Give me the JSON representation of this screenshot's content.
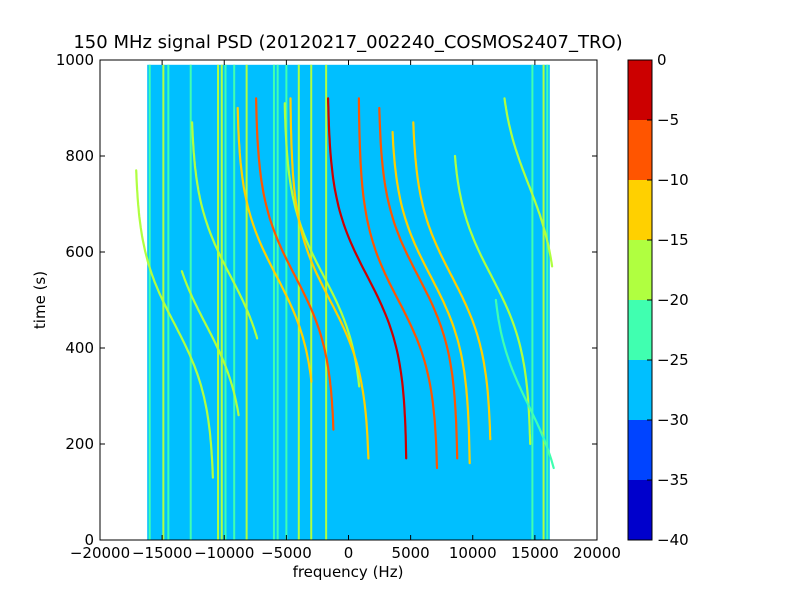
{
  "chart_data": {
    "type": "heatmap",
    "title": "150 MHz signal PSD (20120217_002240_COSMOS2407_TRO)",
    "xlabel": "frequency (Hz)",
    "ylabel": "time (s)",
    "xlim": [
      -20000,
      20000
    ],
    "ylim": [
      0,
      1000
    ],
    "xticks": [
      "−20000",
      "−15000",
      "−10000",
      "−5000",
      "0",
      "5000",
      "10000",
      "15000",
      "20000"
    ],
    "xtick_values": [
      -20000,
      -15000,
      -10000,
      -5000,
      0,
      5000,
      10000,
      15000,
      20000
    ],
    "yticks": [
      "0",
      "200",
      "400",
      "600",
      "800",
      "1000"
    ],
    "ytick_values": [
      0,
      200,
      400,
      600,
      800,
      1000
    ],
    "data_extent": {
      "freq": [
        -16200,
        16200
      ],
      "time": [
        0,
        990
      ]
    },
    "background_level": -27.5,
    "colorbar": {
      "range": [
        -40,
        0
      ],
      "levels": [
        -40,
        -35,
        -30,
        -25,
        -20,
        -15,
        -10,
        -5,
        0
      ],
      "tick_labels": [
        "−40",
        "−35",
        "−30",
        "−25",
        "−20",
        "−15",
        "−10",
        "−5",
        "0"
      ],
      "colors": [
        "#0000cc",
        "#0044ff",
        "#00bfff",
        "#40ffb0",
        "#b0ff40",
        "#ffd000",
        "#ff5500",
        "#cc0000"
      ]
    },
    "vertical_lines": [
      {
        "freq": -16000,
        "level": -22
      },
      {
        "freq": -14900,
        "level": -20
      },
      {
        "freq": -14500,
        "level": -22
      },
      {
        "freq": -12700,
        "level": -22
      },
      {
        "freq": -10500,
        "level": -18
      },
      {
        "freq": -10200,
        "level": -18
      },
      {
        "freq": -9900,
        "level": -22
      },
      {
        "freq": -9200,
        "level": -22
      },
      {
        "freq": -8200,
        "level": -20
      },
      {
        "freq": -6000,
        "level": -22
      },
      {
        "freq": -5700,
        "level": -22
      },
      {
        "freq": -5000,
        "level": -22
      },
      {
        "freq": -4000,
        "level": -20
      },
      {
        "freq": -3000,
        "level": -20
      },
      {
        "freq": -1800,
        "level": -20
      },
      {
        "freq": 14800,
        "level": -22
      },
      {
        "freq": 15700,
        "level": -20
      },
      {
        "freq": 16000,
        "level": -22
      }
    ],
    "doppler_tracks": [
      {
        "center_freq": -14000,
        "center_time": 450,
        "halfspan_freq": 3200,
        "top_time": 770,
        "bottom_time": 130,
        "level": -20
      },
      {
        "center_freq": -11500,
        "center_time": 450,
        "halfspan_freq": 3200,
        "top_time": 560,
        "bottom_time": 260,
        "level": -20
      },
      {
        "center_freq": -9500,
        "center_time": 550,
        "halfspan_freq": 3200,
        "top_time": 870,
        "bottom_time": 420,
        "level": -20
      },
      {
        "center_freq": -5800,
        "center_time": 550,
        "halfspan_freq": 3200,
        "top_time": 900,
        "bottom_time": 330,
        "level": -15
      },
      {
        "center_freq": -4300,
        "center_time": 550,
        "halfspan_freq": 3200,
        "top_time": 920,
        "bottom_time": 230,
        "level": -8
      },
      {
        "center_freq": -2000,
        "center_time": 550,
        "halfspan_freq": 3200,
        "top_time": 910,
        "bottom_time": 320,
        "level": -18
      },
      {
        "center_freq": -1500,
        "center_time": 500,
        "halfspan_freq": 3200,
        "top_time": 920,
        "bottom_time": 170,
        "level": -15
      },
      {
        "center_freq": 1500,
        "center_time": 550,
        "halfspan_freq": 3200,
        "top_time": 920,
        "bottom_time": 170,
        "level": -5
      },
      {
        "center_freq": 4000,
        "center_time": 500,
        "halfspan_freq": 3200,
        "top_time": 920,
        "bottom_time": 150,
        "level": -8
      },
      {
        "center_freq": 5600,
        "center_time": 550,
        "halfspan_freq": 3200,
        "top_time": 900,
        "bottom_time": 170,
        "level": -8
      },
      {
        "center_freq": 6600,
        "center_time": 550,
        "halfspan_freq": 3200,
        "top_time": 850,
        "bottom_time": 160,
        "level": -15
      },
      {
        "center_freq": 8300,
        "center_time": 550,
        "halfspan_freq": 3200,
        "top_time": 870,
        "bottom_time": 210,
        "level": -12
      },
      {
        "center_freq": 11500,
        "center_time": 550,
        "halfspan_freq": 3200,
        "top_time": 800,
        "bottom_time": 200,
        "level": -20
      },
      {
        "center_freq": 14500,
        "center_time": 280,
        "halfspan_freq": 3000,
        "top_time": 500,
        "bottom_time": 150,
        "level": -25
      },
      {
        "center_freq": 14500,
        "center_time": 740,
        "halfspan_freq": 2400,
        "top_time": 920,
        "bottom_time": 570,
        "level": -20
      }
    ]
  }
}
